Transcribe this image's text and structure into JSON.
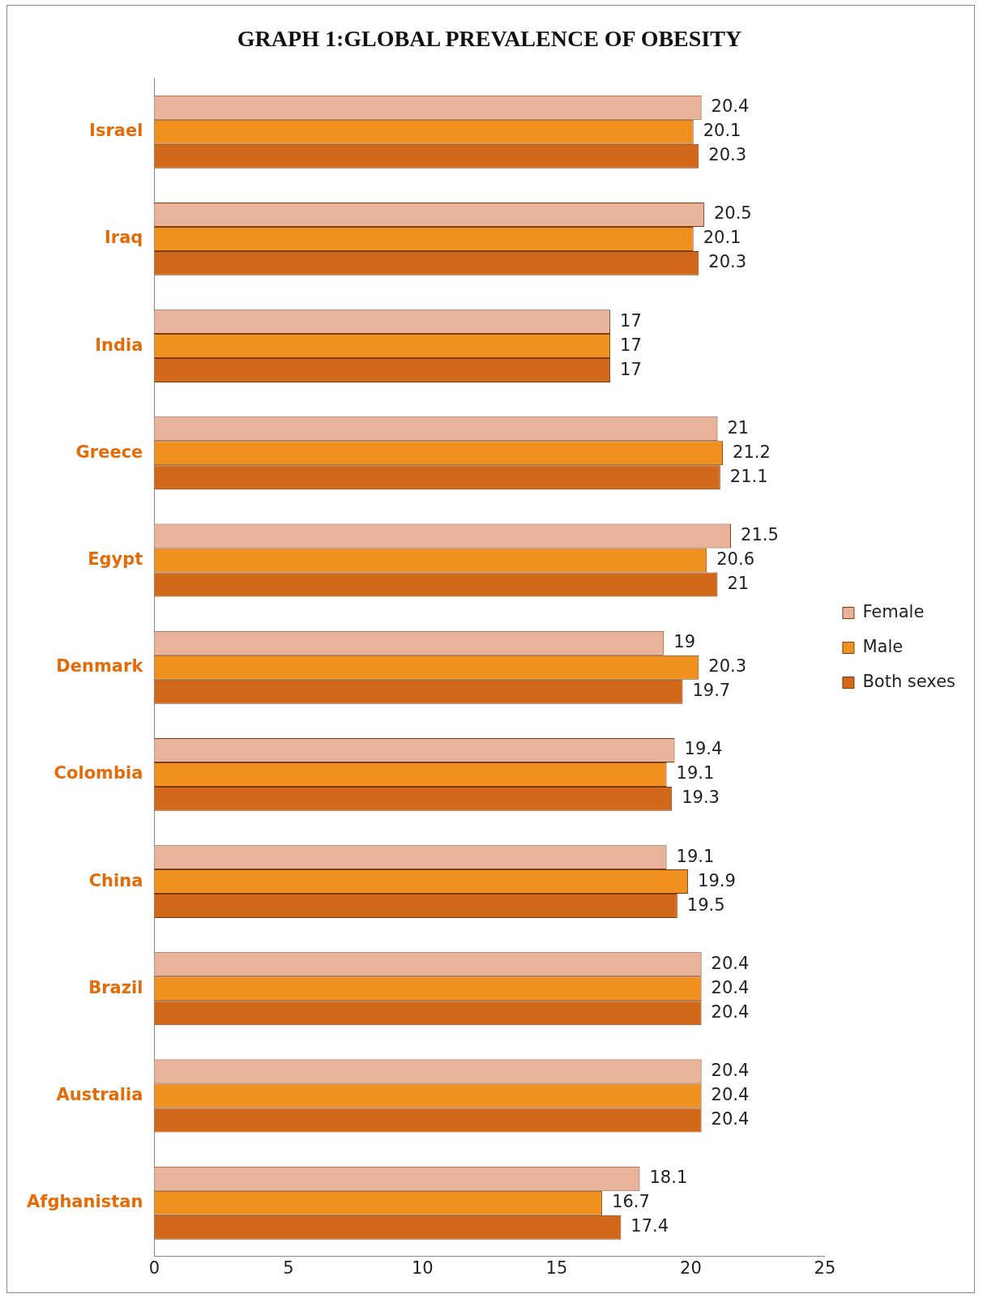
{
  "chart_data": {
    "type": "bar",
    "orientation": "horizontal",
    "title": "GRAPH 1:GLOBAL PREVALENCE OF OBESITY",
    "categories": [
      "Israel",
      "Iraq",
      "India",
      "Greece",
      "Egypt",
      "Denmark",
      "Colombia",
      "China",
      "Brazil",
      "Australia",
      "Afghanistan"
    ],
    "series": [
      {
        "name": "Female",
        "color": "#e8b39a",
        "values": [
          20.4,
          20.5,
          17,
          21,
          21.5,
          19,
          19.4,
          19.1,
          20.4,
          20.4,
          18.1
        ]
      },
      {
        "name": "Male",
        "color": "#f0901e",
        "values": [
          20.1,
          20.1,
          17,
          21.2,
          20.6,
          20.3,
          19.1,
          19.9,
          20.4,
          20.4,
          16.7
        ]
      },
      {
        "name": "Both sexes",
        "color": "#d2691a",
        "values": [
          20.3,
          20.3,
          17,
          21.1,
          21,
          19.7,
          19.3,
          19.5,
          20.4,
          20.4,
          17.4
        ]
      }
    ],
    "xlim": [
      0,
      25
    ],
    "xticks": [
      0,
      5,
      10,
      15,
      20,
      25
    ],
    "grid": false,
    "legend": "right",
    "data_labels": true
  }
}
